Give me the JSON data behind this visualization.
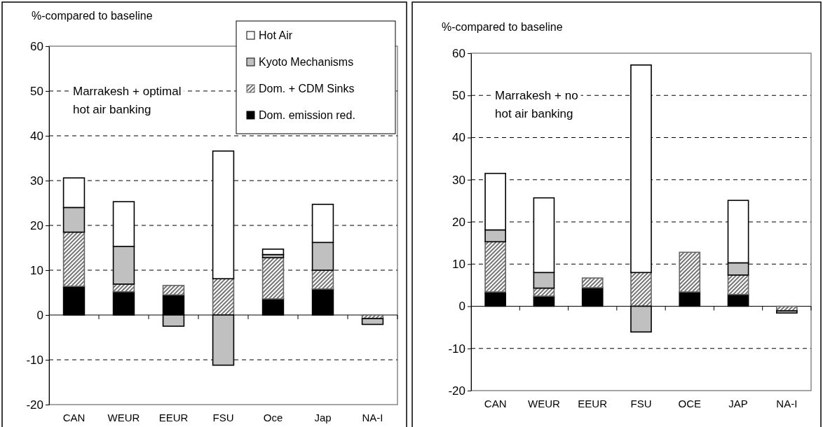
{
  "chart_data": [
    {
      "type": "bar",
      "stacked": true,
      "ylabel": "%-compared to baseline",
      "annotations": [
        "Marrakesh + optimal\nhot air banking"
      ],
      "categories": [
        "CAN",
        "WEUR",
        "EEUR",
        "FSU",
        "Oce",
        "Jap",
        "NA-I"
      ],
      "ylim": [
        -20,
        60
      ],
      "yticks": [
        -20,
        -10,
        0,
        10,
        20,
        30,
        40,
        50,
        60
      ],
      "grid": "y",
      "legend": "top right",
      "series": [
        {
          "name": "Dom. emission red.",
          "color": "#000000",
          "values": [
            6.4,
            5.2,
            4.5,
            0,
            3.6,
            5.8,
            0
          ]
        },
        {
          "name": "Dom. + CDM Sinks",
          "color": "#666666",
          "values": [
            12.1,
            1.7,
            2.1,
            8.1,
            9.2,
            4.2,
            -0.8
          ]
        },
        {
          "name": "Kyoto Mechanisms",
          "color": "#c0c0c0",
          "values": [
            5.5,
            8.4,
            -2.5,
            -11.2,
            0.7,
            6.2,
            -1.3
          ]
        },
        {
          "name": "Hot Air",
          "color": "#ffffff",
          "values": [
            6.6,
            10.0,
            0,
            28.5,
            1.2,
            8.5,
            0
          ]
        }
      ]
    },
    {
      "type": "bar",
      "stacked": true,
      "ylabel": "%-compared to baseline",
      "annotations": [
        "Marrakesh + no\nhot air banking"
      ],
      "categories": [
        "CAN",
        "WEUR",
        "EEUR",
        "FSU",
        "OCE",
        "JAP",
        "NA-I"
      ],
      "ylim": [
        -20,
        60
      ],
      "yticks": [
        -20,
        -10,
        0,
        10,
        20,
        30,
        40,
        50,
        60
      ],
      "grid": "y",
      "series": [
        {
          "color": "#000000",
          "values": [
            3.4,
            2.4,
            4.4,
            0,
            3.4,
            2.8,
            0
          ]
        },
        {
          "color": "#666666",
          "values": [
            11.9,
            1.9,
            2.3,
            8.0,
            9.4,
            4.6,
            -1.1
          ]
        },
        {
          "color": "#c0c0c0",
          "values": [
            2.8,
            3.7,
            0,
            -6.1,
            0,
            2.9,
            -0.5
          ]
        },
        {
          "color": "#ffffff",
          "values": [
            13.4,
            17.7,
            0,
            49.2,
            0,
            14.8,
            0
          ]
        }
      ]
    }
  ]
}
